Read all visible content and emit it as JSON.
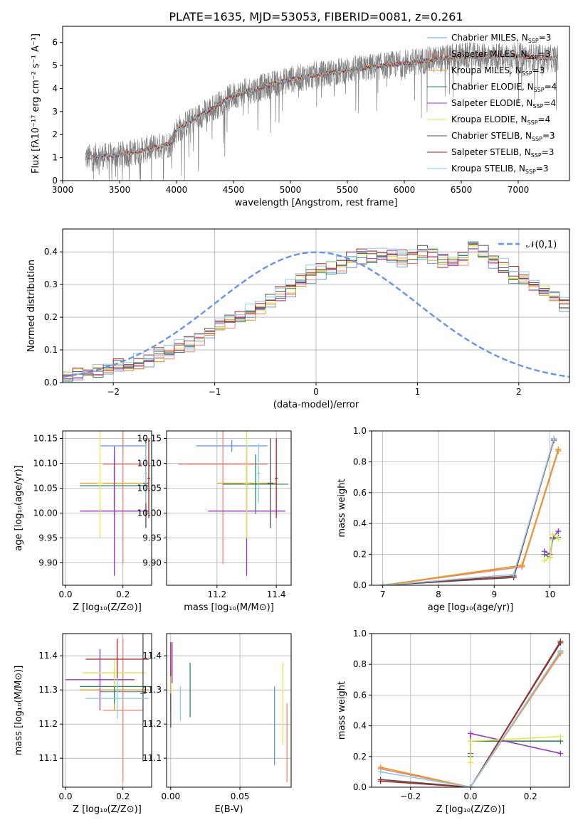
{
  "title": "PLATE=1635, MJD=53053, FIBERID=0081, z=0.261",
  "series_colors": [
    "#6495ed",
    "#fa8072",
    "#e69a10",
    "#2e8b57",
    "#9932cc",
    "#e6e64a",
    "#505050",
    "#b22222",
    "#87ceeb"
  ],
  "chart_data": [
    {
      "type": "line",
      "name": "spectrum",
      "xlabel": "wavelength [Angstrom, rest frame]",
      "ylabel": "Flux [fλ10⁻¹⁷ erg cm⁻² s⁻¹ A⁻¹]",
      "xlim": [
        3000,
        7450
      ],
      "ylim": [
        0,
        6.7
      ],
      "xticks": [
        3000,
        3500,
        4000,
        4500,
        5000,
        5500,
        6000,
        6500,
        7000
      ],
      "yticks": [
        0,
        1,
        2,
        3,
        4,
        5,
        6
      ],
      "grid": false,
      "legend_position": "top-right",
      "data_color": "#808080",
      "data_range": [
        3200,
        7350
      ],
      "continuum": {
        "x": [
          3200,
          3500,
          3950,
          4000,
          4500,
          5000,
          5500,
          6000,
          6500,
          7000,
          7300
        ],
        "y": [
          1.0,
          1.1,
          1.6,
          2.2,
          3.7,
          4.4,
          4.8,
          5.1,
          5.4,
          5.4,
          5.3
        ]
      },
      "series": [
        {
          "name": "Chabrier MILES, N_SSP=3",
          "range": [
            3500,
            7350
          ]
        },
        {
          "name": "Salpeter MILES, N_SSP=3",
          "range": [
            3500,
            7350
          ]
        },
        {
          "name": "Kroupa MILES, N_SSP=3",
          "range": [
            3500,
            7350
          ]
        },
        {
          "name": "Chabrier ELODIE, N_SSP=4",
          "range": [
            3900,
            6800
          ]
        },
        {
          "name": "Salpeter ELODIE, N_SSP=4",
          "range": [
            3900,
            6800
          ]
        },
        {
          "name": "Kroupa ELODIE, N_SSP=4",
          "range": [
            3900,
            6800
          ]
        },
        {
          "name": "Chabrier STELIB, N_SSP=3",
          "range": [
            3200,
            7350
          ]
        },
        {
          "name": "Salpeter STELIB, N_SSP=3",
          "range": [
            3200,
            7350
          ]
        },
        {
          "name": "Kroupa STELIB, N_SSP=3",
          "range": [
            3200,
            7350
          ]
        }
      ]
    },
    {
      "type": "histogram",
      "name": "residuals",
      "xlabel": "(data-model)/error",
      "ylabel": "Normed distribution",
      "xlim": [
        -2.5,
        2.5
      ],
      "ylim": [
        0,
        0.47
      ],
      "xticks": [
        -2,
        -1,
        0,
        1,
        2
      ],
      "yticks": [
        0.0,
        0.1,
        0.2,
        0.3,
        0.4
      ],
      "grid": true,
      "legend": "𝒩(0,1)",
      "legend_position": "top-right",
      "bin_width": 0.1,
      "bin_start": -2.5,
      "reference_values": [
        0.02,
        0.025,
        0.03,
        0.035,
        0.04,
        0.05,
        0.05,
        0.06,
        0.07,
        0.08,
        0.09,
        0.11,
        0.12,
        0.14,
        0.15,
        0.17,
        0.19,
        0.2,
        0.21,
        0.23,
        0.25,
        0.27,
        0.29,
        0.31,
        0.33,
        0.34,
        0.35,
        0.36,
        0.38,
        0.39,
        0.38,
        0.39,
        0.39,
        0.38,
        0.39,
        0.4,
        0.39,
        0.38,
        0.37,
        0.38,
        0.42,
        0.4,
        0.37,
        0.35,
        0.33,
        0.32,
        0.3,
        0.28,
        0.26,
        0.24,
        0.22,
        0.21,
        0.19,
        0.17,
        0.15,
        0.13,
        0.12,
        0.11,
        0.09,
        0.08,
        0.07,
        0.07,
        0.06,
        0.05,
        0.05,
        0.04,
        0.035,
        0.03,
        0.03,
        0.025
      ],
      "bins_to_draw": 50,
      "normal_curve": {
        "mu": 0,
        "sigma": 1
      }
    },
    {
      "type": "errorbar",
      "name": "z-age",
      "xlabel": "Z [log₁₀(Z/Z⊙)]",
      "ylabel": "age  [log₁₀(age/yr)]",
      "xlim": [
        -0.01,
        0.3
      ],
      "ylim": [
        9.855,
        10.165
      ],
      "xticks": [
        0.0,
        0.2
      ],
      "yticks": [
        9.9,
        9.95,
        10.0,
        10.05,
        10.1,
        10.15
      ],
      "grid": true,
      "points": [
        {
          "x": 0.2,
          "y": 10.135,
          "xerr": 0.08,
          "yerr": 0.012
        },
        {
          "x": 0.2,
          "y": 10.098,
          "xerr": 0.07,
          "yerr": 0.2
        },
        {
          "x": 0.17,
          "y": 10.06,
          "xerr": 0.12,
          "yerr": 0.05
        },
        {
          "x": 0.17,
          "y": 10.055,
          "xerr": 0.12,
          "yerr": 0.06
        },
        {
          "x": 0.17,
          "y": 10.004,
          "xerr": 0.12,
          "yerr": 0.13
        },
        {
          "x": 0.12,
          "y": 10.06,
          "xerr": 0.01,
          "yerr": 0.11
        },
        {
          "x": 0.28,
          "y": 10.06,
          "xerr": 0.01,
          "yerr": 0.09
        },
        {
          "x": 0.29,
          "y": 10.07,
          "xerr": 0.005,
          "yerr": 0.08
        },
        {
          "x": 0.28,
          "y": 10.08,
          "xerr": 0.005,
          "yerr": 0.06
        }
      ]
    },
    {
      "type": "errorbar",
      "name": "mass-age",
      "xlabel": "mass [log₁₀(M/M⊙)]",
      "ylabel": "",
      "xlim": [
        11.03,
        11.45
      ],
      "ylim": [
        9.855,
        10.165
      ],
      "xticks": [
        11.2,
        11.4
      ],
      "yticks": [
        9.9,
        9.95,
        10.0,
        10.05,
        10.1,
        10.15
      ],
      "grid": true,
      "points": [
        {
          "x": 11.25,
          "y": 10.135,
          "xerr": 0.12,
          "yerr": 0.012
        },
        {
          "x": 11.22,
          "y": 10.098,
          "xerr": 0.15,
          "yerr": 0.2
        },
        {
          "x": 11.3,
          "y": 10.06,
          "xerr": 0.1,
          "yerr": 0.05
        },
        {
          "x": 11.33,
          "y": 10.058,
          "xerr": 0.11,
          "yerr": 0.06
        },
        {
          "x": 11.3,
          "y": 10.004,
          "xerr": 0.13,
          "yerr": 0.13
        },
        {
          "x": 11.3,
          "y": 10.06,
          "xerr": 0.01,
          "yerr": 0.11
        },
        {
          "x": 11.38,
          "y": 10.06,
          "xerr": 0.01,
          "yerr": 0.09
        },
        {
          "x": 11.4,
          "y": 10.07,
          "xerr": 0.005,
          "yerr": 0.08
        },
        {
          "x": 11.34,
          "y": 10.08,
          "xerr": 0.005,
          "yerr": 0.06
        }
      ]
    },
    {
      "type": "line",
      "name": "age-weight",
      "xlabel": "age  [log₁₀(age/yr)]",
      "ylabel": "mass weight",
      "xlim": [
        6.8,
        10.35
      ],
      "ylim": [
        0,
        1.0
      ],
      "xticks": [
        7,
        8,
        9,
        10
      ],
      "yticks": [
        0.0,
        0.2,
        0.4,
        0.6,
        0.8,
        1.0
      ],
      "grid": true,
      "series": [
        {
          "x": [
            7.0,
            9.5,
            10.15
          ],
          "y": [
            0.0,
            0.12,
            0.88
          ]
        },
        {
          "x": [
            7.0,
            9.5,
            10.15
          ],
          "y": [
            0.0,
            0.12,
            0.87
          ]
        },
        {
          "x": [
            7.0,
            9.5,
            10.15
          ],
          "y": [
            0.0,
            0.13,
            0.88
          ]
        },
        {
          "x": [
            9.9,
            10.0,
            10.05,
            10.15
          ],
          "y": [
            0.2,
            0.18,
            0.3,
            0.31
          ]
        },
        {
          "x": [
            9.9,
            10.0,
            10.05,
            10.15
          ],
          "y": [
            0.22,
            0.2,
            0.31,
            0.35
          ]
        },
        {
          "x": [
            9.9,
            10.0,
            10.05,
            10.15
          ],
          "y": [
            0.16,
            0.18,
            0.33,
            0.3
          ]
        },
        {
          "x": [
            7.0,
            9.35,
            10.07
          ],
          "y": [
            0.0,
            0.05,
            0.95
          ]
        },
        {
          "x": [
            7.0,
            9.35,
            10.07
          ],
          "y": [
            0.0,
            0.06,
            0.94
          ]
        },
        {
          "x": [
            7.0,
            9.35,
            10.07
          ],
          "y": [
            0.0,
            0.07,
            0.95
          ]
        }
      ]
    },
    {
      "type": "errorbar",
      "name": "z-mass",
      "xlabel": "Z [log₁₀(Z/Z⊙)]",
      "ylabel": "mass [log₁₀(M/M⊙)]",
      "xlim": [
        -0.01,
        0.3
      ],
      "ylim": [
        11.015,
        11.465
      ],
      "xticks": [
        0.0,
        0.2
      ],
      "yticks": [
        11.1,
        11.2,
        11.3,
        11.4
      ],
      "grid": true,
      "points": [
        {
          "x": 0.2,
          "y": 11.295,
          "xerr": 0.08,
          "yerr": 0.02
        },
        {
          "x": 0.2,
          "y": 11.24,
          "xerr": 0.07,
          "yerr": 0.21
        },
        {
          "x": 0.17,
          "y": 11.3,
          "xerr": 0.12,
          "yerr": 0.06
        },
        {
          "x": 0.17,
          "y": 11.31,
          "xerr": 0.12,
          "yerr": 0.05
        },
        {
          "x": 0.12,
          "y": 11.33,
          "xerr": 0.12,
          "yerr": 0.09
        },
        {
          "x": 0.17,
          "y": 11.35,
          "xerr": 0.11,
          "yerr": 0.04
        },
        {
          "x": 0.27,
          "y": 11.29,
          "xerr": 0.01,
          "yerr": 0.2
        },
        {
          "x": 0.18,
          "y": 11.39,
          "xerr": 0.11,
          "yerr": 0.06
        },
        {
          "x": 0.18,
          "y": 11.275,
          "xerr": 0.11,
          "yerr": 0.06
        }
      ]
    },
    {
      "type": "errorbar",
      "name": "ebv-mass",
      "xlabel": "E(B-V)",
      "ylabel": "",
      "xlim": [
        -0.003,
        0.087
      ],
      "ylim": [
        11.015,
        11.465
      ],
      "xticks": [
        0.0,
        0.05
      ],
      "yticks": [
        11.1,
        11.2,
        11.3,
        11.4
      ],
      "grid": true,
      "points": [
        {
          "x": 0.075,
          "y": 11.195,
          "xerr": 0,
          "yerr": 0.115
        },
        {
          "x": 0.084,
          "y": 11.145,
          "xerr": 0,
          "yerr": 0.115
        },
        {
          "x": 0.0,
          "y": 11.3,
          "xerr": 0,
          "yerr": 0.06
        },
        {
          "x": 0.014,
          "y": 11.3,
          "xerr": 0,
          "yerr": 0.08
        },
        {
          "x": 0.001,
          "y": 11.38,
          "xerr": 0,
          "yerr": 0.06
        },
        {
          "x": 0.081,
          "y": 11.26,
          "xerr": 0,
          "yerr": 0.12
        },
        {
          "x": 0.0,
          "y": 11.24,
          "xerr": 0,
          "yerr": 0.05
        },
        {
          "x": 0.0,
          "y": 11.39,
          "xerr": 0,
          "yerr": 0.05
        },
        {
          "x": 0.007,
          "y": 11.26,
          "xerr": 0,
          "yerr": 0.05
        }
      ]
    },
    {
      "type": "line",
      "name": "z-weight",
      "xlabel": "Z [log₁₀(Z/Z⊙)]",
      "ylabel": "mass weight",
      "xlim": [
        -0.33,
        0.33
      ],
      "ylim": [
        0,
        1.0
      ],
      "xticks": [
        -0.2,
        0.0,
        0.2
      ],
      "yticks": [
        0.0,
        0.2,
        0.4,
        0.6,
        0.8,
        1.0
      ],
      "grid": true,
      "series": [
        {
          "x": [
            -0.3,
            0.0,
            0.3
          ],
          "y": [
            0.12,
            0.0,
            0.88
          ]
        },
        {
          "x": [
            -0.3,
            0.0,
            0.3
          ],
          "y": [
            0.12,
            0.0,
            0.87
          ]
        },
        {
          "x": [
            -0.3,
            0.0,
            0.3
          ],
          "y": [
            0.13,
            0.0,
            0.88
          ]
        },
        {
          "x": [
            0.0,
            0.0,
            0.3
          ],
          "y": [
            0.2,
            0.3,
            0.3
          ]
        },
        {
          "x": [
            0.0,
            0.0,
            0.3
          ],
          "y": [
            0.22,
            0.35,
            0.22
          ]
        },
        {
          "x": [
            0.0,
            0.0,
            0.3
          ],
          "y": [
            0.16,
            0.3,
            0.33
          ]
        },
        {
          "x": [
            -0.3,
            0.0,
            0.3
          ],
          "y": [
            0.05,
            0.0,
            0.95
          ]
        },
        {
          "x": [
            -0.3,
            0.0,
            0.3
          ],
          "y": [
            0.04,
            0.0,
            0.94
          ]
        },
        {
          "x": [
            -0.3,
            0.0,
            0.3
          ],
          "y": [
            0.1,
            0.0,
            0.89
          ]
        }
      ]
    }
  ]
}
